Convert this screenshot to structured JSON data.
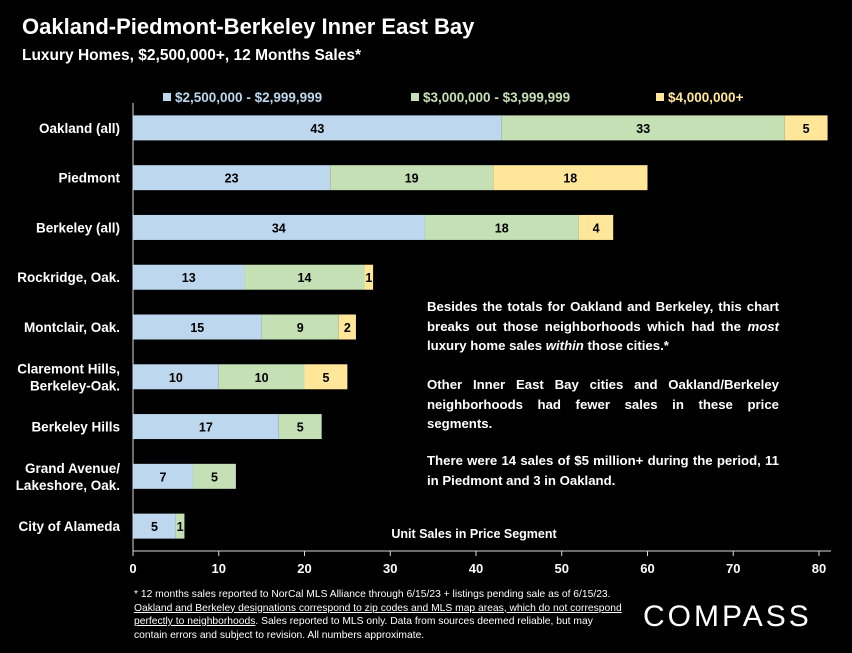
{
  "chart_data": {
    "type": "bar",
    "orientation": "horizontal",
    "stacked": true,
    "title": "Oakland-Piedmont-Berkeley Inner East Bay",
    "subtitle": "Luxury Homes, $2,500,000+, 12 Months Sales*",
    "xlabel": "Unit Sales in Price Segment",
    "ylabel": "",
    "xlim": [
      0,
      80
    ],
    "xticks": [
      "0",
      "10",
      "20",
      "30",
      "40",
      "50",
      "60",
      "70",
      "80"
    ],
    "grid": false,
    "legend_position": "top",
    "categories": [
      [
        "Oakland (all)"
      ],
      [
        "Piedmont"
      ],
      [
        "Berkeley (all)"
      ],
      [
        "Rockridge, Oak."
      ],
      [
        "Montclair, Oak."
      ],
      [
        "Claremont Hills,",
        "Berkeley-Oak."
      ],
      [
        "Berkeley Hills"
      ],
      [
        "Grand Avenue/",
        "Lakeshore, Oak."
      ],
      [
        "City of Alameda"
      ]
    ],
    "series": [
      {
        "name": "$2,500,000 - $2,999,999",
        "color": "#bdd7ee",
        "values": [
          43,
          23,
          34,
          13,
          15,
          10,
          17,
          7,
          5
        ]
      },
      {
        "name": "$3,000,000 - $3,999,999",
        "color": "#c5e0b4",
        "values": [
          33,
          19,
          18,
          14,
          9,
          10,
          5,
          5,
          1
        ]
      },
      {
        "name": "$4,000,000+",
        "color": "#ffe699",
        "values": [
          5,
          18,
          4,
          1,
          2,
          5,
          0,
          0,
          0
        ]
      }
    ]
  },
  "notes": {
    "p1_a": "Besides the totals for Oakland and Berkeley, this chart breaks out those neighborhoods which had the ",
    "p1_em1": "most",
    "p1_b": " luxury home sales ",
    "p1_em2": "within",
    "p1_c": " those cities.*",
    "p2": "Other Inner East Bay cities and Oakland/Berkeley neighborhoods had fewer sales in these price segments.",
    "p3": "There were 14 sales of $5 million+ during the period, 11 in Piedmont and 3 in Oakland."
  },
  "footnote": {
    "a": "* 12 months sales reported to NorCal MLS Alliance through 6/15/23 + listings pending sale as of 6/15/23. ",
    "u": "Oakland and Berkeley designations correspond to zip codes and MLS map areas, which do not correspond perfectly to neighborhoods",
    "b": ". Sales reported to MLS only. Data from sources deemed reliable, but may contain errors and subject to revision. All numbers approximate."
  },
  "brand": {
    "logo_text": "COMPASS"
  }
}
